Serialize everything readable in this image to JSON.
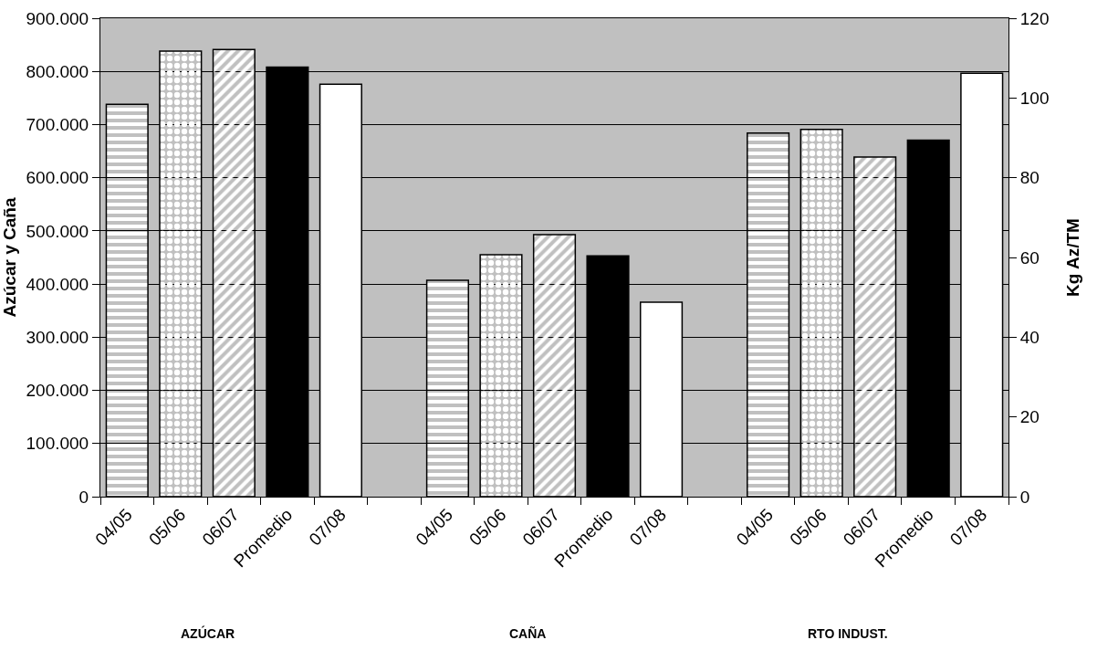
{
  "chart_data": {
    "type": "bar",
    "ylabel": "Azúcar y Caña",
    "y2label": "Kg Az/TM",
    "categories": [
      "04/05",
      "05/06",
      "06/07",
      "Promedio",
      "07/08",
      null,
      "04/05",
      "05/06",
      "06/07",
      "Promedio",
      "07/08",
      null,
      "04/05",
      "05/06",
      "06/07",
      "Promedio",
      "07/08"
    ],
    "series": [
      {
        "colors": [
          "#000000",
          "#000000",
          "#000000",
          "#000000",
          "#ffffff",
          null,
          "#000000",
          "#000000",
          "#000000",
          "#000000",
          "#ffffff",
          null,
          null,
          null,
          null,
          null,
          null
        ],
        "values": [
          738000,
          838000,
          841000,
          808000,
          776000,
          null,
          407000,
          455000,
          493000,
          453000,
          366000,
          null,
          null,
          null,
          null,
          null,
          null
        ]
      },
      {
        "axis": "y2",
        "colors": [
          null,
          null,
          null,
          null,
          null,
          null,
          null,
          null,
          null,
          null,
          null,
          null,
          "#000000",
          "#000000",
          "#000000",
          "#000000",
          "#ffffff"
        ],
        "values": [
          null,
          null,
          null,
          null,
          null,
          null,
          null,
          null,
          null,
          null,
          null,
          null,
          91.2,
          92.1,
          85.2,
          89.4,
          106.2
        ]
      }
    ],
    "ylim": [
      0,
      900000
    ],
    "yticks": [
      0,
      {
        "value": 100000,
        "label": "100.000"
      },
      {
        "value": 200000,
        "label": "200.000"
      },
      {
        "value": 300000,
        "label": "300.000"
      },
      {
        "value": 400000,
        "label": "400.000"
      },
      {
        "value": 500000,
        "label": "500.000"
      },
      {
        "value": 600000,
        "label": "600.000"
      },
      {
        "value": 700000,
        "label": "700.000"
      },
      {
        "value": 800000,
        "label": "800.000"
      },
      {
        "value": 900000,
        "label": "900.000"
      }
    ],
    "y2lim": [
      0,
      120
    ],
    "y2ticks": [
      0,
      20,
      40,
      60,
      80,
      100,
      120
    ],
    "grid": "y",
    "annotations": [
      "AZÚCAR",
      "CAÑA",
      "RTO INDUST."
    ]
  }
}
